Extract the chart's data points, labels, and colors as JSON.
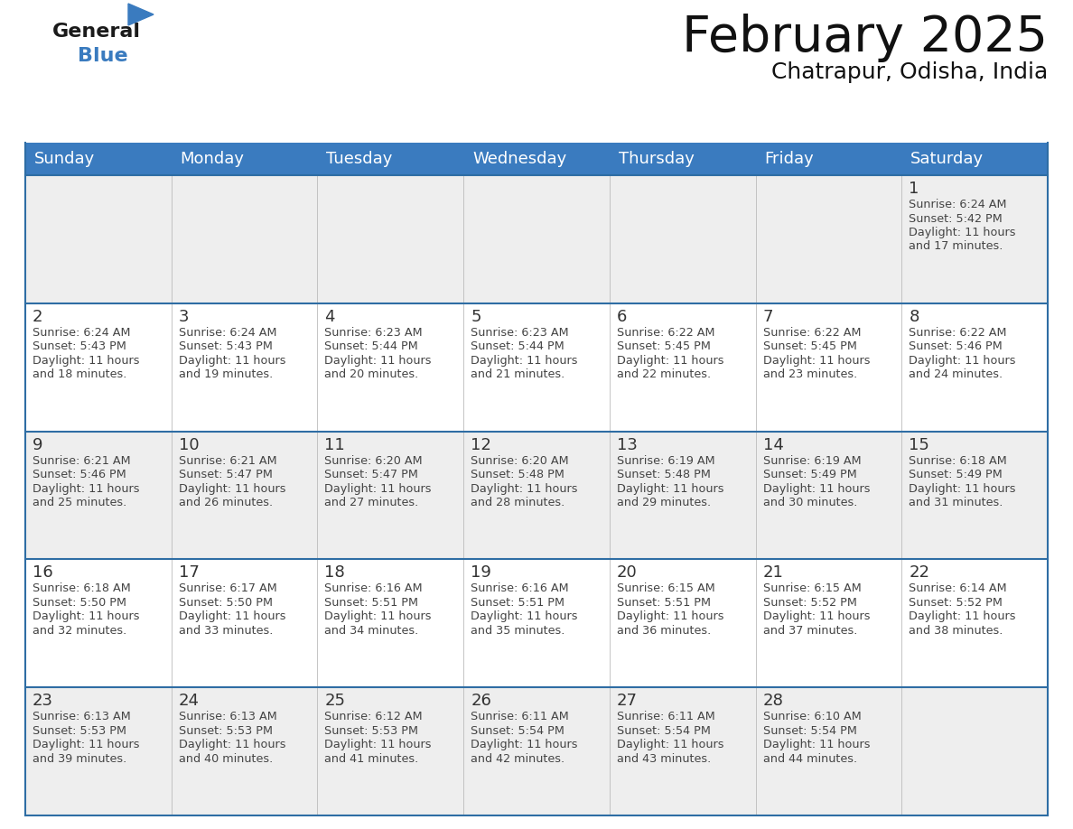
{
  "title": "February 2025",
  "subtitle": "Chatrapur, Odisha, India",
  "header_color": "#3a7bbf",
  "header_text_color": "#ffffff",
  "days_of_week": [
    "Sunday",
    "Monday",
    "Tuesday",
    "Wednesday",
    "Thursday",
    "Friday",
    "Saturday"
  ],
  "row_bg_odd": "#eeeeee",
  "row_bg_even": "#ffffff",
  "border_color": "#2e6da4",
  "outer_border_color": "#2e6da4",
  "text_color": "#333333",
  "calendar_data": [
    [
      null,
      null,
      null,
      null,
      null,
      null,
      {
        "day": 1,
        "sunrise": "6:24 AM",
        "sunset": "5:42 PM",
        "daylight_hours": 11,
        "daylight_minutes": 17
      }
    ],
    [
      {
        "day": 2,
        "sunrise": "6:24 AM",
        "sunset": "5:43 PM",
        "daylight_hours": 11,
        "daylight_minutes": 18
      },
      {
        "day": 3,
        "sunrise": "6:24 AM",
        "sunset": "5:43 PM",
        "daylight_hours": 11,
        "daylight_minutes": 19
      },
      {
        "day": 4,
        "sunrise": "6:23 AM",
        "sunset": "5:44 PM",
        "daylight_hours": 11,
        "daylight_minutes": 20
      },
      {
        "day": 5,
        "sunrise": "6:23 AM",
        "sunset": "5:44 PM",
        "daylight_hours": 11,
        "daylight_minutes": 21
      },
      {
        "day": 6,
        "sunrise": "6:22 AM",
        "sunset": "5:45 PM",
        "daylight_hours": 11,
        "daylight_minutes": 22
      },
      {
        "day": 7,
        "sunrise": "6:22 AM",
        "sunset": "5:45 PM",
        "daylight_hours": 11,
        "daylight_minutes": 23
      },
      {
        "day": 8,
        "sunrise": "6:22 AM",
        "sunset": "5:46 PM",
        "daylight_hours": 11,
        "daylight_minutes": 24
      }
    ],
    [
      {
        "day": 9,
        "sunrise": "6:21 AM",
        "sunset": "5:46 PM",
        "daylight_hours": 11,
        "daylight_minutes": 25
      },
      {
        "day": 10,
        "sunrise": "6:21 AM",
        "sunset": "5:47 PM",
        "daylight_hours": 11,
        "daylight_minutes": 26
      },
      {
        "day": 11,
        "sunrise": "6:20 AM",
        "sunset": "5:47 PM",
        "daylight_hours": 11,
        "daylight_minutes": 27
      },
      {
        "day": 12,
        "sunrise": "6:20 AM",
        "sunset": "5:48 PM",
        "daylight_hours": 11,
        "daylight_minutes": 28
      },
      {
        "day": 13,
        "sunrise": "6:19 AM",
        "sunset": "5:48 PM",
        "daylight_hours": 11,
        "daylight_minutes": 29
      },
      {
        "day": 14,
        "sunrise": "6:19 AM",
        "sunset": "5:49 PM",
        "daylight_hours": 11,
        "daylight_minutes": 30
      },
      {
        "day": 15,
        "sunrise": "6:18 AM",
        "sunset": "5:49 PM",
        "daylight_hours": 11,
        "daylight_minutes": 31
      }
    ],
    [
      {
        "day": 16,
        "sunrise": "6:18 AM",
        "sunset": "5:50 PM",
        "daylight_hours": 11,
        "daylight_minutes": 32
      },
      {
        "day": 17,
        "sunrise": "6:17 AM",
        "sunset": "5:50 PM",
        "daylight_hours": 11,
        "daylight_minutes": 33
      },
      {
        "day": 18,
        "sunrise": "6:16 AM",
        "sunset": "5:51 PM",
        "daylight_hours": 11,
        "daylight_minutes": 34
      },
      {
        "day": 19,
        "sunrise": "6:16 AM",
        "sunset": "5:51 PM",
        "daylight_hours": 11,
        "daylight_minutes": 35
      },
      {
        "day": 20,
        "sunrise": "6:15 AM",
        "sunset": "5:51 PM",
        "daylight_hours": 11,
        "daylight_minutes": 36
      },
      {
        "day": 21,
        "sunrise": "6:15 AM",
        "sunset": "5:52 PM",
        "daylight_hours": 11,
        "daylight_minutes": 37
      },
      {
        "day": 22,
        "sunrise": "6:14 AM",
        "sunset": "5:52 PM",
        "daylight_hours": 11,
        "daylight_minutes": 38
      }
    ],
    [
      {
        "day": 23,
        "sunrise": "6:13 AM",
        "sunset": "5:53 PM",
        "daylight_hours": 11,
        "daylight_minutes": 39
      },
      {
        "day": 24,
        "sunrise": "6:13 AM",
        "sunset": "5:53 PM",
        "daylight_hours": 11,
        "daylight_minutes": 40
      },
      {
        "day": 25,
        "sunrise": "6:12 AM",
        "sunset": "5:53 PM",
        "daylight_hours": 11,
        "daylight_minutes": 41
      },
      {
        "day": 26,
        "sunrise": "6:11 AM",
        "sunset": "5:54 PM",
        "daylight_hours": 11,
        "daylight_minutes": 42
      },
      {
        "day": 27,
        "sunrise": "6:11 AM",
        "sunset": "5:54 PM",
        "daylight_hours": 11,
        "daylight_minutes": 43
      },
      {
        "day": 28,
        "sunrise": "6:10 AM",
        "sunset": "5:54 PM",
        "daylight_hours": 11,
        "daylight_minutes": 44
      },
      null
    ]
  ],
  "figsize": [
    11.88,
    9.18
  ],
  "dpi": 100
}
